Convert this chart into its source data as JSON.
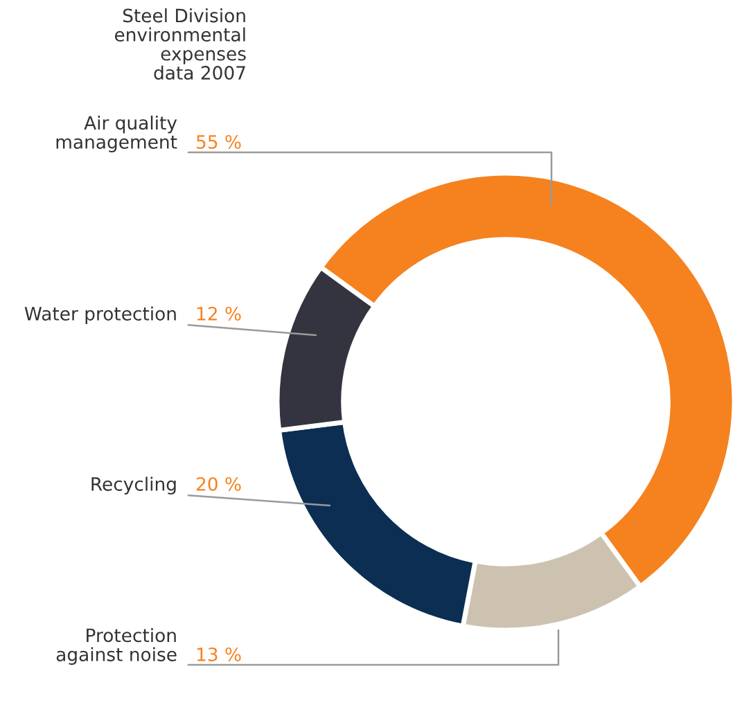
{
  "chart_data": {
    "type": "donut",
    "title": "Steel Division\nenvironmental\nexpenses\ndata 2007",
    "categories": [
      "Air quality\nmanagement",
      "Protection\nagainst noise",
      "Recycling",
      "Water protection"
    ],
    "values": [
      55,
      13,
      20,
      12
    ],
    "value_labels": [
      "55 %",
      "13 %",
      "20 %",
      "12 %"
    ],
    "colors": [
      "#f5821f",
      "#cdc2b0",
      "#0b2e52",
      "#33343f"
    ],
    "legend": false
  }
}
